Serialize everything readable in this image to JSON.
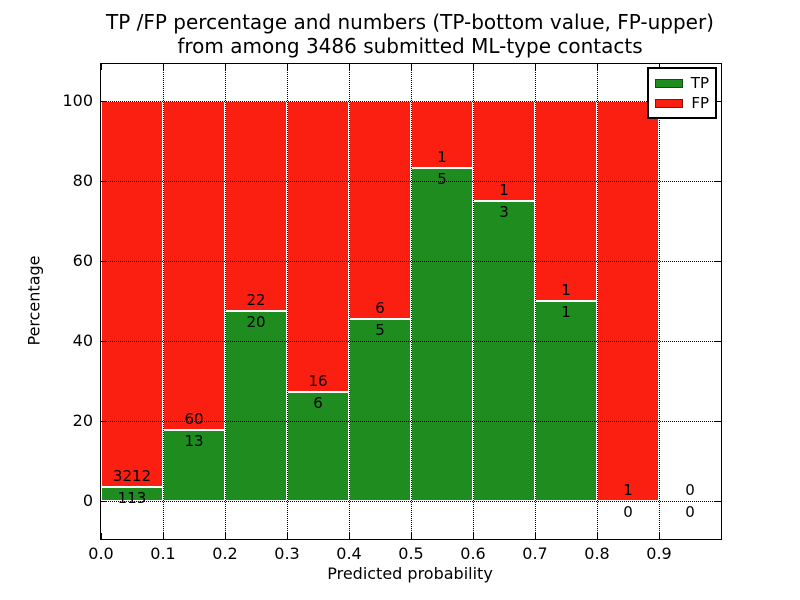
{
  "title": {
    "line1": "TP /FP percentage and numbers (TP-bottom value, FP-upper)",
    "line2": "from among 3486 submitted ML-type contacts"
  },
  "axes": {
    "xlabel": "Predicted probability",
    "ylabel": "Percentage"
  },
  "legend": {
    "items": [
      {
        "label": "TP",
        "color": "#1f8c1f"
      },
      {
        "label": "FP",
        "color": "#fa1f10"
      }
    ]
  },
  "chart_data": {
    "type": "bar",
    "stacked": true,
    "unit": "percent-of-bin",
    "title": "TP /FP percentage and numbers (TP-bottom value, FP-upper) from among 3486 submitted ML-type contacts",
    "xlabel": "Predicted probability",
    "ylabel": "Percentage",
    "total_contacts": 3486,
    "bin_starts": [
      0.0,
      0.1,
      0.2,
      0.3,
      0.4,
      0.5,
      0.6,
      0.7,
      0.8,
      0.9
    ],
    "bin_width": 0.1,
    "series": [
      {
        "name": "TP",
        "color": "#1f8c1f",
        "counts": [
          113,
          13,
          20,
          6,
          5,
          5,
          3,
          1,
          0,
          0
        ]
      },
      {
        "name": "FP",
        "color": "#fa1f10",
        "counts": [
          3212,
          60,
          22,
          16,
          6,
          1,
          1,
          1,
          1,
          0
        ]
      }
    ],
    "tp_percent_per_bin": [
      3.4,
      17.8,
      47.6,
      27.3,
      45.5,
      83.3,
      75.0,
      50.0,
      0.0,
      null
    ],
    "xlim": [
      0.0,
      1.0
    ],
    "ylim": [
      -9.5,
      109.4
    ],
    "yticks": [
      0,
      20,
      40,
      60,
      80,
      100
    ],
    "xtick_labels": [
      "0.0",
      "0.1",
      "0.2",
      "0.3",
      "0.4",
      "0.5",
      "0.6",
      "0.7",
      "0.8",
      "0.9"
    ],
    "grid": true,
    "grid_on_top_of_bars": true,
    "legend_position": "upper right"
  }
}
